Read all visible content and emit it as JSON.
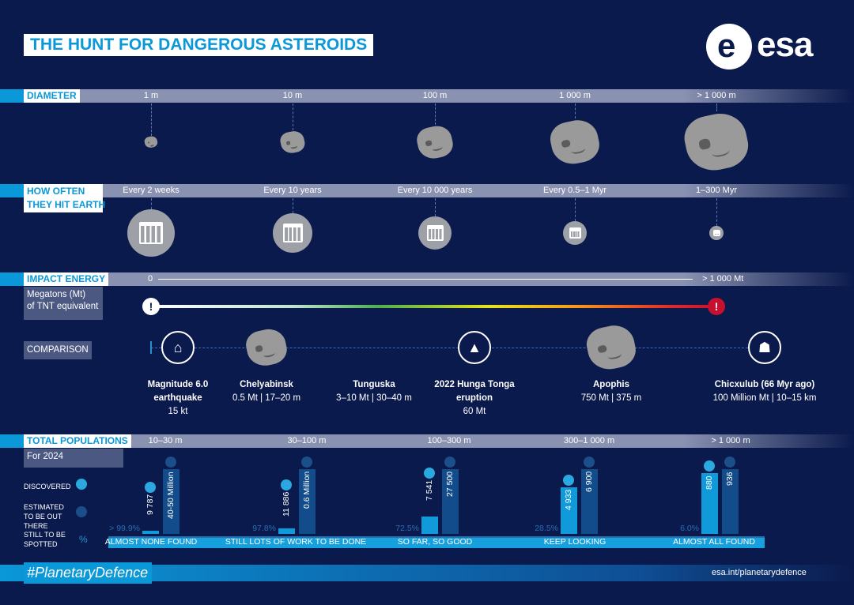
{
  "title": "THE HUNT FOR DANGEROUS ASTEROIDS",
  "logo": "esa",
  "diameter": {
    "label": "DIAMETER",
    "columns": [
      "1 m",
      "10 m",
      "100 m",
      "1 000 m",
      "> 1 000 m"
    ]
  },
  "how_often": {
    "label_line1": "HOW OFTEN",
    "label_line2": "THEY HIT EARTH",
    "columns": [
      "Every 2 weeks",
      "Every 10 years",
      "Every 10 000 years",
      "Every 0.5–1 Myr",
      "1–300 Myr"
    ]
  },
  "impact_energy": {
    "label": "IMPACT ENERGY",
    "start": "0",
    "end": "> 1 000 Mt",
    "unit_line1": "Megatons (Mt)",
    "unit_line2": "of TNT equivalent",
    "marker": "!"
  },
  "comparison": {
    "label": "COMPARISON",
    "items": [
      {
        "name": "Magnitude 6.0 earthquake",
        "detail": "15 kt",
        "icon": "earthquake-icon"
      },
      {
        "name": "Chelyabinsk",
        "detail": "0.5 Mt | 17–20 m",
        "icon": "asteroid-icon"
      },
      {
        "name": "Tunguska",
        "detail": "3–10 Mt | 30–40 m",
        "icon": "asteroid-icon"
      },
      {
        "name": "2022 Hunga Tonga eruption",
        "detail": "60 Mt",
        "icon": "volcano-icon"
      },
      {
        "name": "Apophis",
        "detail": "750 Mt | 375 m",
        "icon": "asteroid-icon"
      },
      {
        "name": "Chicxulub (66 Myr ago)",
        "detail": "100 Million Mt | 10–15 km",
        "icon": "dinosaur-icon"
      }
    ]
  },
  "populations": {
    "label": "TOTAL POPULATIONS",
    "year": "For 2024",
    "legend": {
      "discovered": "DISCOVERED",
      "estimated": "ESTIMATED TO BE OUT THERE",
      "still": "STILL TO BE SPOTTED",
      "pct_symbol": "%"
    },
    "groups": [
      {
        "range": "10–30 m",
        "discovered": "9 787",
        "estimated": "40-50 Million",
        "still_pct": "> 99.9%",
        "status": "ALMOST NONE FOUND",
        "disc_fill": 0.02
      },
      {
        "range": "30–100 m",
        "discovered": "11 886",
        "estimated": "0.6 Million",
        "still_pct": "97.8%",
        "status": "STILL LOTS OF WORK TO BE DONE",
        "disc_fill": 0.08
      },
      {
        "range": "100–300 m",
        "discovered": "7 541",
        "estimated": "27 500",
        "still_pct": "72.5%",
        "status": "SO FAR, SO GOOD",
        "disc_fill": 0.27
      },
      {
        "range": "300–1 000 m",
        "discovered": "4 933",
        "estimated": "6 900",
        "still_pct": "28.5%",
        "status": "KEEP LOOKING",
        "disc_fill": 0.715
      },
      {
        "range": "> 1 000 m",
        "discovered": "880",
        "estimated": "936",
        "still_pct": "6.0%",
        "status": "ALMOST ALL FOUND",
        "disc_fill": 0.94
      }
    ]
  },
  "footer": {
    "hashtag": "#PlanetaryDefence",
    "url": "esa.int/planetarydefence"
  }
}
